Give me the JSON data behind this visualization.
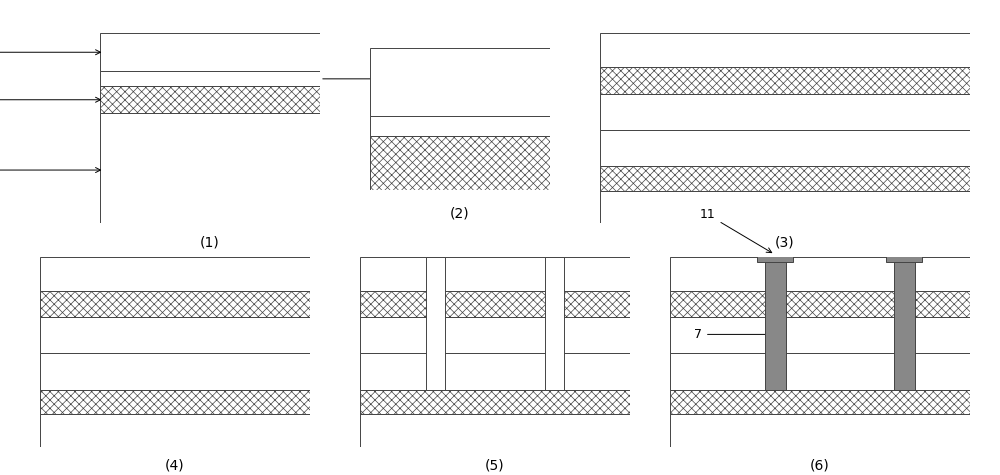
{
  "fig_w": 10.0,
  "fig_h": 4.75,
  "bg": "#ffffff",
  "panel_labels": [
    "(1)",
    "(2)",
    "(3)",
    "(4)",
    "(5)",
    "(6)"
  ],
  "lw": 0.7,
  "hatch_zz": "WWWW",
  "hatch_xx": "xxxx",
  "via_fc": "#bbbbbb",
  "layer_fc": "white",
  "edge_c": "#444444"
}
